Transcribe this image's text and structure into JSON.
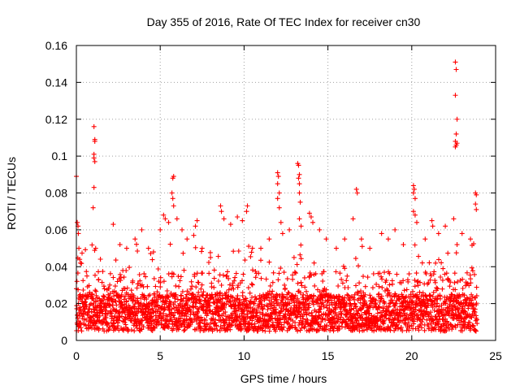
{
  "chart_data": {
    "type": "scatter",
    "title": "Day 355 of 2016, Rate Of TEC Index for receiver cn30",
    "xlabel": "GPS time / hours",
    "ylabel": "ROTI / TECUs",
    "xlim": [
      0,
      25
    ],
    "ylim": [
      0,
      0.16
    ],
    "xticks": [
      0,
      5,
      10,
      15,
      20,
      25
    ],
    "xtick_labels": [
      "0",
      "5",
      "10",
      "15",
      "20",
      "25"
    ],
    "yticks": [
      0,
      0.02,
      0.04,
      0.06,
      0.08,
      0.1,
      0.12,
      0.14,
      0.16
    ],
    "ytick_labels": [
      "0",
      "0.02",
      "0.04",
      "0.06",
      "0.08",
      "0.1",
      "0.12",
      "0.14",
      "0.16"
    ],
    "grid": true,
    "marker": "+",
    "series_color": "#ff0000",
    "data_extent_hours": [
      0,
      23.9
    ],
    "typical_range": [
      0.005,
      0.03
    ],
    "series": [
      {
        "name": "ROTI",
        "points": [
          [
            0.0,
            0.089
          ],
          [
            0.05,
            0.064
          ],
          [
            0.1,
            0.062
          ],
          [
            0.12,
            0.058
          ],
          [
            0.15,
            0.05
          ],
          [
            0.2,
            0.044
          ],
          [
            0.25,
            0.042
          ],
          [
            1.05,
            0.116
          ],
          [
            1.1,
            0.109
          ],
          [
            1.1,
            0.108
          ],
          [
            1.05,
            0.101
          ],
          [
            1.05,
            0.099
          ],
          [
            1.1,
            0.097
          ],
          [
            1.05,
            0.083
          ],
          [
            1.0,
            0.072
          ],
          [
            1.15,
            0.05
          ],
          [
            2.2,
            0.063
          ],
          [
            2.6,
            0.052
          ],
          [
            3.0,
            0.05
          ],
          [
            3.5,
            0.055
          ],
          [
            3.9,
            0.06
          ],
          [
            4.3,
            0.05
          ],
          [
            4.6,
            0.048
          ],
          [
            5.0,
            0.06
          ],
          [
            5.2,
            0.068
          ],
          [
            5.3,
            0.066
          ],
          [
            5.5,
            0.064
          ],
          [
            5.8,
            0.089
          ],
          [
            5.75,
            0.088
          ],
          [
            5.7,
            0.08
          ],
          [
            5.75,
            0.077
          ],
          [
            5.8,
            0.073
          ],
          [
            6.0,
            0.066
          ],
          [
            6.3,
            0.06
          ],
          [
            6.6,
            0.055
          ],
          [
            7.2,
            0.065
          ],
          [
            7.1,
            0.062
          ],
          [
            7.0,
            0.057
          ],
          [
            7.5,
            0.05
          ],
          [
            8.0,
            0.045
          ],
          [
            8.6,
            0.073
          ],
          [
            8.65,
            0.07
          ],
          [
            8.8,
            0.066
          ],
          [
            9.2,
            0.063
          ],
          [
            9.6,
            0.067
          ],
          [
            9.9,
            0.065
          ],
          [
            10.2,
            0.073
          ],
          [
            10.15,
            0.07
          ],
          [
            10.5,
            0.05
          ],
          [
            11.0,
            0.05
          ],
          [
            11.5,
            0.055
          ],
          [
            12.0,
            0.091
          ],
          [
            12.05,
            0.089
          ],
          [
            12.0,
            0.085
          ],
          [
            12.1,
            0.08
          ],
          [
            12.0,
            0.077
          ],
          [
            12.1,
            0.072
          ],
          [
            12.2,
            0.064
          ],
          [
            12.3,
            0.058
          ],
          [
            12.7,
            0.06
          ],
          [
            13.2,
            0.096
          ],
          [
            13.25,
            0.095
          ],
          [
            13.3,
            0.09
          ],
          [
            13.25,
            0.088
          ],
          [
            13.3,
            0.085
          ],
          [
            13.3,
            0.08
          ],
          [
            13.35,
            0.075
          ],
          [
            13.3,
            0.066
          ],
          [
            13.4,
            0.062
          ],
          [
            13.9,
            0.069
          ],
          [
            14.0,
            0.067
          ],
          [
            14.1,
            0.064
          ],
          [
            14.5,
            0.06
          ],
          [
            14.9,
            0.055
          ],
          [
            15.5,
            0.05
          ],
          [
            16.0,
            0.055
          ],
          [
            16.5,
            0.066
          ],
          [
            16.7,
            0.082
          ],
          [
            16.75,
            0.08
          ],
          [
            17.0,
            0.055
          ],
          [
            17.5,
            0.05
          ],
          [
            18.2,
            0.058
          ],
          [
            18.6,
            0.055
          ],
          [
            19.0,
            0.06
          ],
          [
            19.5,
            0.052
          ],
          [
            20.1,
            0.084
          ],
          [
            20.15,
            0.082
          ],
          [
            20.1,
            0.08
          ],
          [
            20.2,
            0.077
          ],
          [
            20.1,
            0.07
          ],
          [
            20.2,
            0.068
          ],
          [
            20.3,
            0.064
          ],
          [
            20.8,
            0.055
          ],
          [
            21.2,
            0.065
          ],
          [
            21.25,
            0.062
          ],
          [
            21.6,
            0.058
          ],
          [
            22.0,
            0.062
          ],
          [
            22.6,
            0.151
          ],
          [
            22.65,
            0.147
          ],
          [
            22.6,
            0.133
          ],
          [
            22.7,
            0.12
          ],
          [
            22.65,
            0.112
          ],
          [
            22.6,
            0.108
          ],
          [
            22.7,
            0.107
          ],
          [
            22.65,
            0.106
          ],
          [
            22.6,
            0.105
          ],
          [
            22.5,
            0.066
          ],
          [
            22.7,
            0.052
          ],
          [
            23.0,
            0.058
          ],
          [
            23.5,
            0.055
          ],
          [
            23.8,
            0.08
          ],
          [
            23.85,
            0.079
          ],
          [
            23.8,
            0.074
          ],
          [
            23.85,
            0.071
          ]
        ]
      }
    ]
  }
}
